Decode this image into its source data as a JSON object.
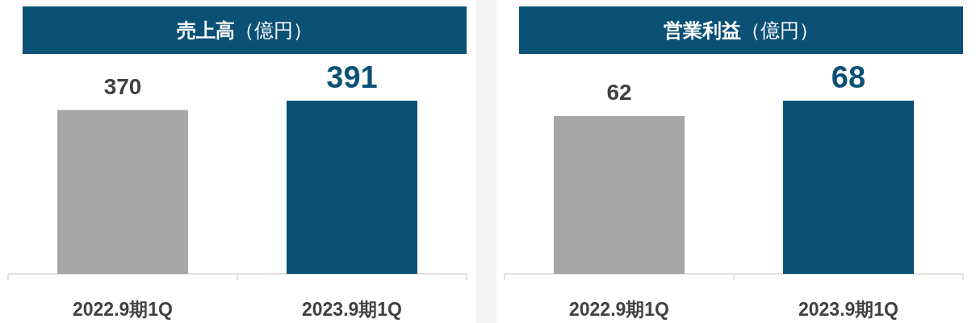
{
  "chart_data": [
    {
      "type": "bar",
      "title": "売上高（億円）",
      "categories": [
        "2022.9期1Q",
        "2023.9期1Q"
      ],
      "values": [
        370,
        391
      ],
      "colors": [
        "#a6a6a6",
        "#0b5176"
      ],
      "data_labels": true
    },
    {
      "type": "bar",
      "title": "営業利益（億円）",
      "categories": [
        "2022.9期1Q",
        "2023.9期1Q"
      ],
      "values": [
        62,
        68
      ],
      "colors": [
        "#a6a6a6",
        "#0b5176"
      ],
      "data_labels": true
    }
  ]
}
